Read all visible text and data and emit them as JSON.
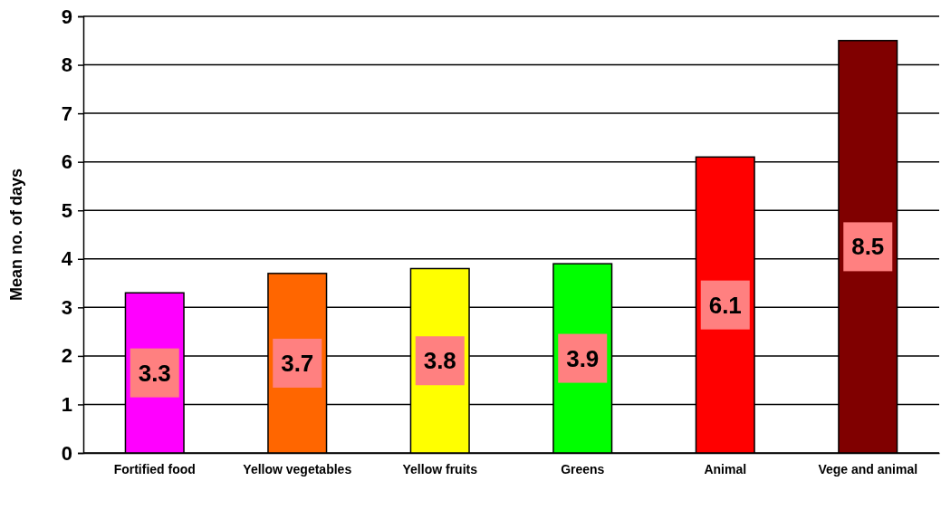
{
  "chart_data": {
    "type": "bar",
    "ylabel": "Mean no. of days",
    "categories": [
      "Fortified food",
      "Yellow vegetables",
      "Yellow fruits",
      "Greens",
      "Animal",
      "Vege and animal"
    ],
    "values": [
      3.3,
      3.7,
      3.8,
      3.9,
      6.1,
      8.5
    ],
    "colors": [
      "#ff00ff",
      "#ff6600",
      "#ffff00",
      "#00ff00",
      "#ff0000",
      "#800000"
    ],
    "ylim": [
      0,
      9
    ],
    "yticks": [
      0,
      1,
      2,
      3,
      4,
      5,
      6,
      7,
      8,
      9
    ],
    "grid": "y",
    "data_labels": true
  }
}
